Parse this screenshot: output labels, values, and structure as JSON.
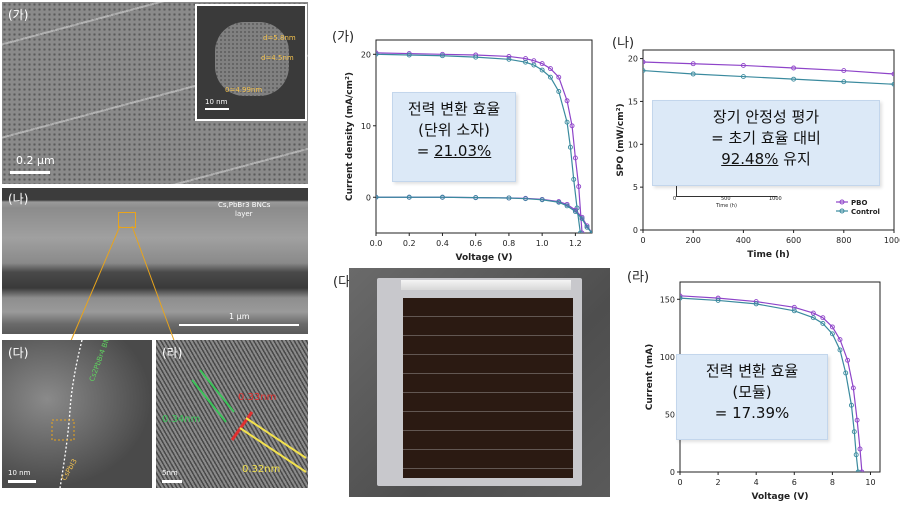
{
  "micrographs": {
    "a": {
      "label": "(가)",
      "scale": "0.2 μm",
      "inset_scale": "10 nm",
      "inset_annotations": [
        "d=5.8nm",
        "d=4.5nm",
        "0=4.99nm"
      ]
    },
    "b": {
      "label": "(나)",
      "layer": "Cs,PbBr3 BNCs",
      "layer2": "layer",
      "scale": "1 μm"
    },
    "c": {
      "label": "(다)",
      "scale": "10 nm",
      "phase": "CsPbI3",
      "phase2": "Cs2PbBr4 BNCs"
    },
    "d": {
      "label": "(라)",
      "scale": "5nm",
      "d1": "0.33nm",
      "d2": "0.34nm",
      "d3": "0.32nm"
    }
  },
  "panel_ga": {
    "label": "(가)",
    "callout": {
      "line1": "전력 변환 효율",
      "line2": "(단위 소자)",
      "line3_prefix": "= ",
      "line3_value": "21.03%"
    }
  },
  "panel_na": {
    "label": "(나)",
    "callout": {
      "line1": "장기 안정성 평가",
      "line2": "= 초기 효율 대비",
      "line3_value": "92.48%",
      "line3_suffix": " 유지"
    }
  },
  "panel_da": {
    "label": "(다)"
  },
  "panel_ra": {
    "label": "(라)",
    "callout": {
      "line1": "전력 변환 효율",
      "line2": "(모듈)",
      "line3": "= 17.39%"
    }
  },
  "colors": {
    "purple": "#8e44c9",
    "teal": "#3a8a9e",
    "callout_bg": "#dce9f7"
  },
  "chart_data": [
    {
      "type": "line",
      "xlabel": "Voltage (V)",
      "ylabel": "Current density (mA/cm²)",
      "xlim": [
        0,
        1.3
      ],
      "ylim": [
        -5,
        22
      ],
      "xticks": [
        "0.0",
        "0.2",
        "0.4",
        "0.6",
        "0.8",
        "1.0",
        "1.2"
      ],
      "yticks": [
        "0",
        "10",
        "20"
      ],
      "series": [
        {
          "color": "purple",
          "x": [
            0,
            0.2,
            0.4,
            0.6,
            0.8,
            0.9,
            0.95,
            1.0,
            1.05,
            1.1,
            1.15,
            1.18,
            1.2,
            1.22,
            1.24
          ],
          "y": [
            20.2,
            20.1,
            20.0,
            19.9,
            19.7,
            19.4,
            19.1,
            18.7,
            18.0,
            16.8,
            13.5,
            10.0,
            5.5,
            1.5,
            -5
          ]
        },
        {
          "color": "teal",
          "x": [
            0,
            0.2,
            0.4,
            0.6,
            0.8,
            0.9,
            0.95,
            1.0,
            1.05,
            1.1,
            1.15,
            1.17,
            1.19,
            1.21,
            1.23
          ],
          "y": [
            20.0,
            19.9,
            19.8,
            19.6,
            19.3,
            18.9,
            18.5,
            17.8,
            16.8,
            14.8,
            10.5,
            7.0,
            2.5,
            -1.5,
            -5
          ]
        },
        {
          "color": "purple",
          "x": [
            0,
            0.2,
            0.4,
            0.6,
            0.8,
            0.9,
            1.0,
            1.1,
            1.15,
            1.2,
            1.24,
            1.27,
            1.3
          ],
          "y": [
            0,
            0,
            0,
            -0.05,
            -0.1,
            -0.15,
            -0.3,
            -0.6,
            -1.0,
            -1.8,
            -2.8,
            -4.0,
            -5
          ]
        },
        {
          "color": "teal",
          "x": [
            0,
            0.2,
            0.4,
            0.6,
            0.8,
            0.9,
            1.0,
            1.1,
            1.15,
            1.2,
            1.24,
            1.27,
            1.3
          ],
          "y": [
            0,
            0,
            0,
            -0.05,
            -0.1,
            -0.2,
            -0.35,
            -0.7,
            -1.2,
            -2.0,
            -3.0,
            -4.2,
            -5
          ]
        }
      ]
    },
    {
      "type": "line",
      "xlabel": "Time (h)",
      "ylabel": "SPO (mW/cm²)",
      "xlim": [
        0,
        1000
      ],
      "ylim": [
        0,
        21
      ],
      "xticks": [
        "0",
        "200",
        "400",
        "600",
        "800",
        "1000"
      ],
      "yticks": [
        "0",
        "5",
        "10",
        "15",
        "20"
      ],
      "inset_xlabel": "Time (h)",
      "inset_xticks": [
        "0",
        "500",
        "1000"
      ],
      "legend": [
        "PBO",
        "Control"
      ],
      "legend_position": "bottom-right",
      "series": [
        {
          "name": "PBO",
          "color": "purple",
          "x": [
            0,
            200,
            400,
            600,
            800,
            1000
          ],
          "y": [
            19.6,
            19.4,
            19.2,
            18.9,
            18.6,
            18.2
          ]
        },
        {
          "name": "Control",
          "color": "teal",
          "x": [
            0,
            200,
            400,
            600,
            800,
            1000
          ],
          "y": [
            18.6,
            18.2,
            17.9,
            17.6,
            17.3,
            17.0
          ]
        }
      ]
    },
    {
      "type": "line",
      "xlabel": "Voltage (V)",
      "ylabel": "Current (mA)",
      "xlim": [
        0,
        10.5
      ],
      "ylim": [
        0,
        165
      ],
      "xticks": [
        "0",
        "2",
        "4",
        "6",
        "8",
        "10"
      ],
      "yticks": [
        "0",
        "50",
        "100",
        "150"
      ],
      "series": [
        {
          "color": "purple",
          "x": [
            0,
            2,
            4,
            6,
            7,
            7.5,
            8,
            8.4,
            8.8,
            9.1,
            9.3,
            9.45,
            9.55
          ],
          "y": [
            153,
            151,
            148,
            143,
            138,
            134,
            126,
            115,
            97,
            73,
            45,
            20,
            0
          ]
        },
        {
          "color": "teal",
          "x": [
            0,
            2,
            4,
            6,
            7,
            7.5,
            8,
            8.4,
            8.7,
            9.0,
            9.15,
            9.25,
            9.35
          ],
          "y": [
            151,
            149,
            146,
            140,
            134,
            129,
            120,
            106,
            86,
            58,
            35,
            15,
            0
          ]
        }
      ]
    }
  ]
}
